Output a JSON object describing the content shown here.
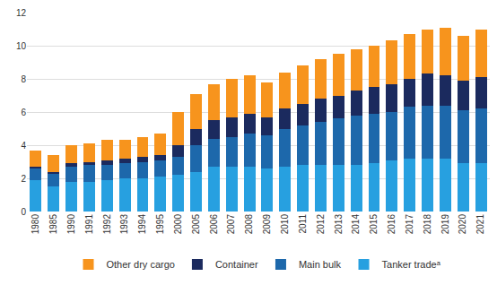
{
  "chart_data": {
    "type": "bar",
    "stacked": true,
    "categories": [
      "1980",
      "1985",
      "1990",
      "1991",
      "1992",
      "1993",
      "1994",
      "1995",
      "2000",
      "2005",
      "2006",
      "2007",
      "2008",
      "2009",
      "2010",
      "2011",
      "2012",
      "2013",
      "2014",
      "2015",
      "2016",
      "2017",
      "2018",
      "2019",
      "2020",
      "2021"
    ],
    "series": [
      {
        "name": "Tanker tradeᵃ",
        "color": "#27a0e0",
        "values": [
          1.9,
          1.5,
          1.8,
          1.8,
          1.9,
          2.0,
          2.0,
          2.1,
          2.2,
          2.4,
          2.7,
          2.7,
          2.7,
          2.6,
          2.7,
          2.8,
          2.8,
          2.8,
          2.8,
          2.9,
          3.1,
          3.2,
          3.2,
          3.2,
          2.9,
          2.9
        ]
      },
      {
        "name": "Main bulk",
        "color": "#1d68ab",
        "values": [
          0.7,
          0.8,
          0.9,
          1.0,
          0.9,
          0.9,
          1.0,
          1.0,
          1.1,
          1.6,
          1.7,
          1.8,
          2.0,
          2.0,
          2.3,
          2.4,
          2.6,
          2.8,
          3.0,
          3.0,
          2.9,
          3.1,
          3.2,
          3.2,
          3.2,
          3.3
        ]
      },
      {
        "name": "Container",
        "color": "#1b2a5e",
        "values": [
          0.1,
          0.1,
          0.2,
          0.2,
          0.3,
          0.3,
          0.3,
          0.3,
          0.7,
          1.0,
          1.1,
          1.2,
          1.2,
          1.1,
          1.2,
          1.3,
          1.4,
          1.4,
          1.5,
          1.6,
          1.7,
          1.7,
          1.9,
          1.8,
          1.8,
          1.9
        ]
      },
      {
        "name": "Other dry cargo",
        "color": "#f7941d",
        "values": [
          1.0,
          1.0,
          1.1,
          1.1,
          1.2,
          1.1,
          1.2,
          1.3,
          2.0,
          2.1,
          2.2,
          2.3,
          2.3,
          2.1,
          2.2,
          2.3,
          2.4,
          2.5,
          2.5,
          2.5,
          2.6,
          2.7,
          2.7,
          2.9,
          2.7,
          2.9
        ]
      }
    ],
    "ylim": [
      0,
      12
    ],
    "yticks": [
      0,
      2,
      4,
      6,
      8,
      10,
      12
    ],
    "grid": true,
    "legend": "bottom"
  }
}
